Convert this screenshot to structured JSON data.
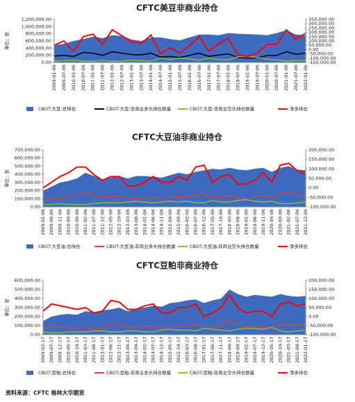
{
  "source": "资料来源：CFTC 格林大华期货",
  "chart_data": [
    {
      "type": "combo",
      "title": "CFTC美豆非商业持仓",
      "ylabel": "单位：张",
      "categories": [
        "2009-01-06",
        "2009-07-06",
        "2010-01-06",
        "2010-07-06",
        "2011-01-06",
        "2011-07-06",
        "2012-01-06",
        "2012-07-06",
        "2013-01-06",
        "2013-07-06",
        "2014-01-06",
        "2014-07-06",
        "2015-01-06",
        "2015-07-06",
        "2016-01-06",
        "2016-07-06",
        "2017-01-06",
        "2017-07-06",
        "2018-01-06",
        "2018-07-06",
        "2019-01-06",
        "2019-07-06",
        "2020-01-06",
        "2020-07-06",
        "2021-01-06",
        "2021-07-06",
        "2022-01-06"
      ],
      "ylim": [
        0,
        1200000
      ],
      "yticks": [
        {
          "value": 0,
          "label": "0.00"
        },
        {
          "value": 200000,
          "label": "200,000.00"
        },
        {
          "value": 400000,
          "label": "400,000.00"
        },
        {
          "value": 600000,
          "label": "600,000.00"
        },
        {
          "value": 800000,
          "label": "800,000.00"
        },
        {
          "value": 1000000,
          "label": "1,000,000.00"
        },
        {
          "value": 1200000,
          "label": "1,200,000.00"
        }
      ],
      "y2lim": [
        -150000,
        350000
      ],
      "y2ticks": [
        {
          "value": -150000,
          "label": "-150,000.00"
        },
        {
          "value": -100000,
          "label": "-100,000.00"
        },
        {
          "value": -50000,
          "label": "-50,000.00"
        },
        {
          "value": 0,
          "label": "0.00"
        },
        {
          "value": 50000,
          "label": "50,000.00"
        },
        {
          "value": 100000,
          "label": "100,000.00"
        },
        {
          "value": 150000,
          "label": "150,000.00"
        },
        {
          "value": 200000,
          "label": "200,000.00"
        },
        {
          "value": 250000,
          "label": "250,000.00"
        },
        {
          "value": 300000,
          "label": "300,000.00"
        },
        {
          "value": 350000,
          "label": "350,000.00"
        }
      ],
      "series": [
        {
          "name": "CBOT:大豆:总持仓",
          "type": "area",
          "color": "#3d6bbf",
          "values": [
            480000,
            520000,
            600000,
            650000,
            720000,
            680000,
            760000,
            740000,
            640000,
            600000,
            700000,
            700000,
            650000,
            620000,
            700000,
            780000,
            780000,
            760000,
            820000,
            800000,
            790000,
            780000,
            760000,
            820000,
            900000,
            780000,
            760000
          ]
        },
        {
          "name": "CBOT:大豆:非商业多头持仓数量",
          "type": "line",
          "color": "#000000",
          "values": [
            180000,
            200000,
            170000,
            280000,
            260000,
            200000,
            300000,
            260000,
            220000,
            210000,
            260000,
            150000,
            170000,
            140000,
            200000,
            260000,
            170000,
            210000,
            240000,
            140000,
            120000,
            130000,
            190000,
            200000,
            300000,
            230000,
            260000
          ]
        },
        {
          "name": "CBOT:大豆:非商业空头持仓数量",
          "type": "line",
          "color": "#8dbb3c",
          "values": [
            40000,
            50000,
            60000,
            40000,
            30000,
            60000,
            30000,
            40000,
            60000,
            50000,
            40000,
            120000,
            80000,
            120000,
            100000,
            60000,
            120000,
            80000,
            70000,
            160000,
            170000,
            140000,
            90000,
            70000,
            40000,
            60000,
            50000
          ]
        },
        {
          "name": "净多持仓",
          "type": "line",
          "axis": "y2",
          "color": "#ff0000",
          "values": [
            50000,
            100000,
            -20000,
            150000,
            180000,
            60000,
            230000,
            160000,
            90000,
            70000,
            170000,
            -50000,
            20000,
            -40000,
            50000,
            150000,
            -20000,
            70000,
            130000,
            -60000,
            -80000,
            -40000,
            60000,
            60000,
            230000,
            120000,
            190000
          ]
        }
      ]
    },
    {
      "type": "combo",
      "title": "CFTC大豆油非商业持仓",
      "ylabel": "单位：张",
      "categories": [
        "2009-01-06",
        "2009-06-06",
        "2009-11-06",
        "2010-04-06",
        "2010-09-06",
        "2011-02-06",
        "2011-07-06",
        "2011-12-06",
        "2012-05-06",
        "2012-10-06",
        "2013-03-06",
        "2013-08-06",
        "2014-01-06",
        "2014-06-06",
        "2014-11-06",
        "2015-04-06",
        "2015-09-06",
        "2016-02-06",
        "2016-07-06",
        "2016-12-06",
        "2017-05-06",
        "2017-10-06",
        "2018-03-06",
        "2018-08-06",
        "2019-01-06",
        "2019-06-06",
        "2019-11-06",
        "2020-04-06",
        "2020-09-06",
        "2021-02-06",
        "2021-07-06",
        "2021-12-06"
      ],
      "ylim": [
        0,
        700000
      ],
      "yticks": [
        {
          "value": 0,
          "label": "0.00"
        },
        {
          "value": 100000,
          "label": "100,000.00"
        },
        {
          "value": 200000,
          "label": "200,000.00"
        },
        {
          "value": 300000,
          "label": "300,000.00"
        },
        {
          "value": 400000,
          "label": "400,000.00"
        },
        {
          "value": 500000,
          "label": "500,000.00"
        },
        {
          "value": 600000,
          "label": "600,000.00"
        },
        {
          "value": 700000,
          "label": "700,000.00"
        }
      ],
      "y2lim": [
        -100000,
        200000
      ],
      "y2ticks": [
        {
          "value": -100000,
          "label": "-100,000.00"
        },
        {
          "value": -50000,
          "label": "-50,000.00"
        },
        {
          "value": 0,
          "label": "0.00"
        },
        {
          "value": 50000,
          "label": "50,000.00"
        },
        {
          "value": 100000,
          "label": "100,000.00"
        },
        {
          "value": 150000,
          "label": "150,000.00"
        },
        {
          "value": 200000,
          "label": "200,000.00"
        }
      ],
      "series": [
        {
          "name": "CBOT:大豆油:总持仓",
          "type": "area",
          "color": "#3d6bbf",
          "values": [
            200000,
            250000,
            300000,
            320000,
            350000,
            420000,
            380000,
            340000,
            360000,
            380000,
            350000,
            380000,
            380000,
            370000,
            360000,
            390000,
            420000,
            400000,
            430000,
            450000,
            470000,
            460000,
            480000,
            460000,
            450000,
            470000,
            480000,
            430000,
            480000,
            500000,
            460000,
            450000
          ]
        },
        {
          "name": "CBOT:大豆油:非商业多头持仓数量",
          "type": "line",
          "color": "#e0403a",
          "values": [
            80000,
            100000,
            110000,
            130000,
            150000,
            180000,
            140000,
            120000,
            130000,
            130000,
            100000,
            100000,
            110000,
            120000,
            110000,
            110000,
            130000,
            120000,
            150000,
            160000,
            120000,
            130000,
            140000,
            110000,
            110000,
            120000,
            140000,
            110000,
            170000,
            180000,
            150000,
            140000
          ]
        },
        {
          "name": "CBOT:大豆油:非商业空头持仓数量",
          "type": "line",
          "color": "#8dbb3c",
          "values": [
            30000,
            30000,
            40000,
            30000,
            30000,
            30000,
            40000,
            50000,
            50000,
            50000,
            60000,
            70000,
            60000,
            50000,
            60000,
            70000,
            60000,
            70000,
            50000,
            50000,
            80000,
            60000,
            60000,
            80000,
            90000,
            70000,
            60000,
            70000,
            40000,
            40000,
            50000,
            60000
          ]
        },
        {
          "name": "净多持仓",
          "type": "line",
          "axis": "y2",
          "color": "#ff0000",
          "values": [
            0,
            30000,
            60000,
            80000,
            110000,
            110000,
            70000,
            40000,
            60000,
            60000,
            10000,
            10000,
            30000,
            60000,
            30000,
            30000,
            60000,
            40000,
            110000,
            120000,
            30000,
            60000,
            70000,
            20000,
            20000,
            40000,
            80000,
            30000,
            120000,
            130000,
            90000,
            70000
          ]
        }
      ]
    },
    {
      "type": "combo",
      "title": "CFTC豆粕非商业持仓",
      "ylabel": "单位：张",
      "categories": [
        "2009-02-17",
        "2009-07-17",
        "2009-12-17",
        "2010-05-17",
        "2010-10-17",
        "2011-03-17",
        "2011-08-17",
        "2012-01-17",
        "2012-06-17",
        "2012-11-17",
        "2013-04-17",
        "2013-09-17",
        "2014-02-17",
        "2014-07-17",
        "2014-12-17",
        "2015-05-17",
        "2015-10-17",
        "2016-03-17",
        "2016-08-17",
        "2017-01-17",
        "2017-06-17",
        "2017-11-17",
        "2018-04-17",
        "2018-09-17",
        "2019-02-17",
        "2019-07-17",
        "2019-12-17",
        "2020-05-17",
        "2020-10-17",
        "2021-03-17",
        "2021-08-17",
        "2022-01-17"
      ],
      "ylim": [
        0,
        600000
      ],
      "yticks": [
        {
          "value": 0,
          "label": "0.00"
        },
        {
          "value": 100000,
          "label": "100,000.00"
        },
        {
          "value": 200000,
          "label": "200,000.00"
        },
        {
          "value": 300000,
          "label": "300,000.00"
        },
        {
          "value": 400000,
          "label": "400,000.00"
        },
        {
          "value": 500000,
          "label": "500,000.00"
        },
        {
          "value": 600000,
          "label": "600,000.00"
        }
      ],
      "y2lim": [
        -100000,
        200000
      ],
      "y2ticks": [
        {
          "value": -100000,
          "label": "-100,000.00"
        },
        {
          "value": -50000,
          "label": "-50,000.00"
        },
        {
          "value": 0,
          "label": "0.00"
        },
        {
          "value": 50000,
          "label": "50,000.00"
        },
        {
          "value": 100000,
          "label": "100,000.00"
        },
        {
          "value": 150000,
          "label": "150,000.00"
        },
        {
          "value": 200000,
          "label": "200,000.00"
        }
      ],
      "series": [
        {
          "name": "CBOT:豆粕:总持仓",
          "type": "area",
          "color": "#3d6bbf",
          "values": [
            150000,
            200000,
            220000,
            230000,
            220000,
            260000,
            250000,
            270000,
            280000,
            300000,
            260000,
            290000,
            300000,
            320000,
            310000,
            350000,
            360000,
            380000,
            390000,
            350000,
            380000,
            400000,
            500000,
            450000,
            420000,
            440000,
            430000,
            420000,
            450000,
            430000,
            420000,
            430000
          ]
        },
        {
          "name": "CBOT:豆粕:非商业多头持仓数量",
          "type": "line",
          "color": "#e0403a",
          "values": [
            70000,
            90000,
            80000,
            80000,
            70000,
            80000,
            60000,
            70000,
            120000,
            110000,
            80000,
            80000,
            90000,
            100000,
            70000,
            80000,
            100000,
            100000,
            110000,
            70000,
            80000,
            100000,
            160000,
            110000,
            90000,
            100000,
            90000,
            80000,
            110000,
            110000,
            100000,
            120000
          ]
        },
        {
          "name": "CBOT:豆粕:非商业空头持仓数量",
          "type": "line",
          "color": "#8dbb3c",
          "values": [
            30000,
            20000,
            20000,
            30000,
            30000,
            30000,
            40000,
            40000,
            30000,
            30000,
            40000,
            40000,
            30000,
            30000,
            50000,
            60000,
            50000,
            50000,
            40000,
            70000,
            60000,
            50000,
            40000,
            60000,
            70000,
            70000,
            60000,
            80000,
            40000,
            30000,
            40000,
            50000
          ]
        },
        {
          "name": "净多持仓",
          "type": "line",
          "axis": "y2",
          "color": "#ff0000",
          "values": [
            30000,
            70000,
            60000,
            50000,
            40000,
            50000,
            20000,
            30000,
            90000,
            80000,
            40000,
            40000,
            60000,
            70000,
            20000,
            20000,
            50000,
            50000,
            70000,
            0,
            20000,
            50000,
            120000,
            50000,
            20000,
            30000,
            30000,
            0,
            70000,
            80000,
            60000,
            70000
          ]
        }
      ]
    }
  ]
}
